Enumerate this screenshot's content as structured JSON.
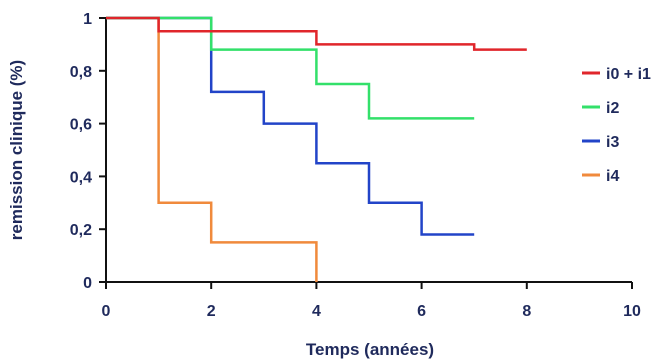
{
  "chart_data": {
    "type": "line",
    "title": "",
    "xlabel": "Temps (années)",
    "ylabel": "remission clinique (%)",
    "xlim": [
      0,
      10
    ],
    "ylim": [
      0,
      1
    ],
    "x_ticks": [
      0,
      2,
      4,
      6,
      8,
      10
    ],
    "x_tick_labels": [
      "0",
      "2",
      "4",
      "6",
      "8",
      "10"
    ],
    "y_ticks": [
      0,
      0.2,
      0.4,
      0.6,
      0.8,
      1
    ],
    "y_tick_labels": [
      "0",
      "0,2",
      "0,4",
      "0,6",
      "0,8",
      "1"
    ],
    "grid": false,
    "legend_position": "right",
    "series": [
      {
        "name": "i0 + i1",
        "color": "#e0262b",
        "x": [
          0,
          1,
          4,
          7,
          8
        ],
        "y": [
          1,
          0.95,
          0.9,
          0.88,
          0.88
        ]
      },
      {
        "name": "i2",
        "color": "#33e06a",
        "x": [
          0,
          2,
          4,
          5,
          7
        ],
        "y": [
          1,
          0.88,
          0.75,
          0.62,
          0.62
        ]
      },
      {
        "name": "i3",
        "color": "#2244c8",
        "x": [
          0,
          2,
          3,
          4,
          5,
          6,
          7
        ],
        "y": [
          1,
          0.72,
          0.6,
          0.45,
          0.3,
          0.18,
          0.18
        ]
      },
      {
        "name": "i4",
        "color": "#f08a3c",
        "x": [
          0,
          1,
          2,
          4
        ],
        "y": [
          1,
          0.3,
          0.15,
          0
        ]
      }
    ]
  }
}
